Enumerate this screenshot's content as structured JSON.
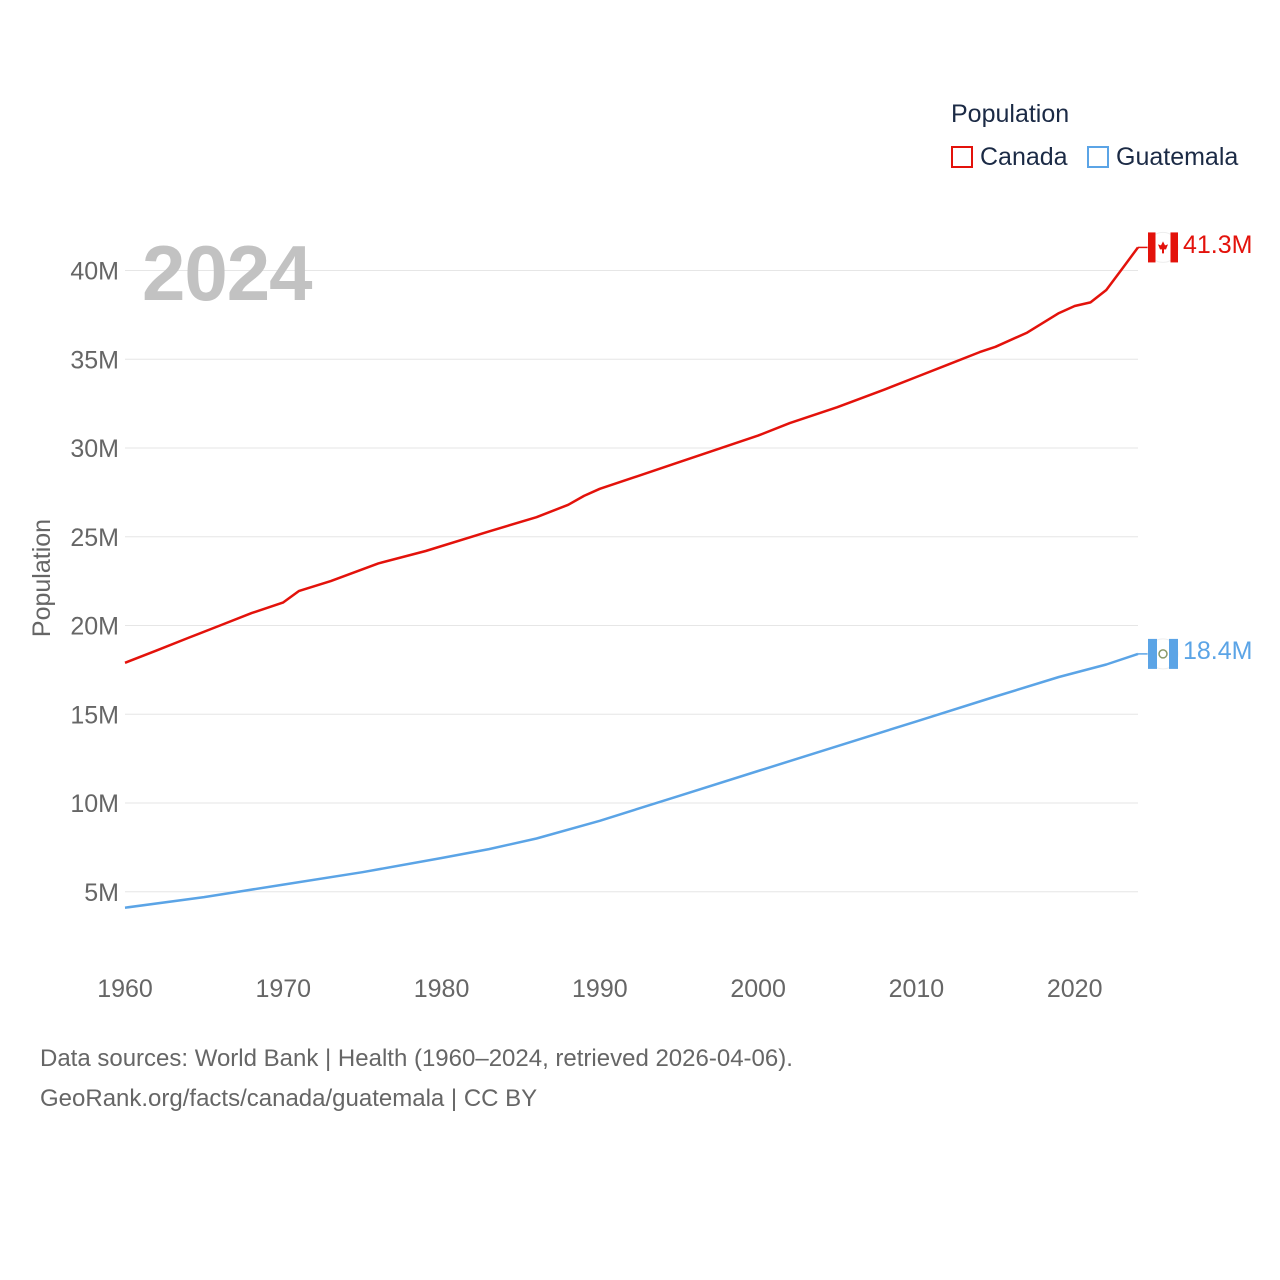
{
  "legend": {
    "title": "Population",
    "items": [
      {
        "label": "Canada",
        "color": "#e3120b"
      },
      {
        "label": "Guatemala",
        "color": "#5ba4e6"
      }
    ]
  },
  "year_watermark": "2024",
  "end_labels": {
    "canada": "41.3M",
    "guatemala": "18.4M"
  },
  "footer": {
    "line1": "Data sources: World Bank | Health (1960–2024, retrieved 2026-04-06).",
    "line2": "GeoRank.org/facts/canada/guatemala | CC BY"
  },
  "chart_data": {
    "type": "line",
    "title": "",
    "xlabel": "",
    "ylabel": "Population",
    "xlim": [
      1960,
      2024
    ],
    "ylim": [
      2000000,
      42000000
    ],
    "x_ticks": [
      1960,
      1970,
      1980,
      1990,
      2000,
      2010,
      2020
    ],
    "x_tick_labels": [
      "1960",
      "1970",
      "1980",
      "1990",
      "2000",
      "2010",
      "2020"
    ],
    "y_ticks": [
      5000000,
      10000000,
      15000000,
      20000000,
      25000000,
      30000000,
      35000000,
      40000000
    ],
    "y_tick_labels": [
      "5M",
      "10M",
      "15M",
      "20M",
      "25M",
      "30M",
      "35M",
      "40M"
    ],
    "grid": true,
    "legend_position": "top-right",
    "series": [
      {
        "name": "Canada",
        "color": "#e3120b",
        "x": [
          1960,
          1962,
          1964,
          1966,
          1968,
          1970,
          1971,
          1973,
          1976,
          1979,
          1983,
          1986,
          1988,
          1989,
          1990,
          1992,
          1995,
          1997,
          2000,
          2002,
          2005,
          2008,
          2010,
          2012,
          2014,
          2015,
          2017,
          2019,
          2020,
          2021,
          2022,
          2023,
          2024
        ],
        "values": [
          17900000,
          18600000,
          19300000,
          20000000,
          20700000,
          21300000,
          21950000,
          22500000,
          23500000,
          24200000,
          25300000,
          26100000,
          26800000,
          27300000,
          27700000,
          28300000,
          29200000,
          29800000,
          30700000,
          31400000,
          32300000,
          33300000,
          34000000,
          34700000,
          35400000,
          35700000,
          36500000,
          37600000,
          38000000,
          38200000,
          38900000,
          40100000,
          41300000
        ]
      },
      {
        "name": "Guatemala",
        "color": "#5ba4e6",
        "x": [
          1960,
          1965,
          1970,
          1975,
          1980,
          1983,
          1986,
          1990,
          1995,
          2000,
          2005,
          2010,
          2015,
          2019,
          2022,
          2024
        ],
        "values": [
          4100000,
          4700000,
          5400000,
          6100000,
          6900000,
          7400000,
          8000000,
          9000000,
          10400000,
          11800000,
          13200000,
          14600000,
          16000000,
          17100000,
          17800000,
          18400000
        ]
      }
    ]
  }
}
